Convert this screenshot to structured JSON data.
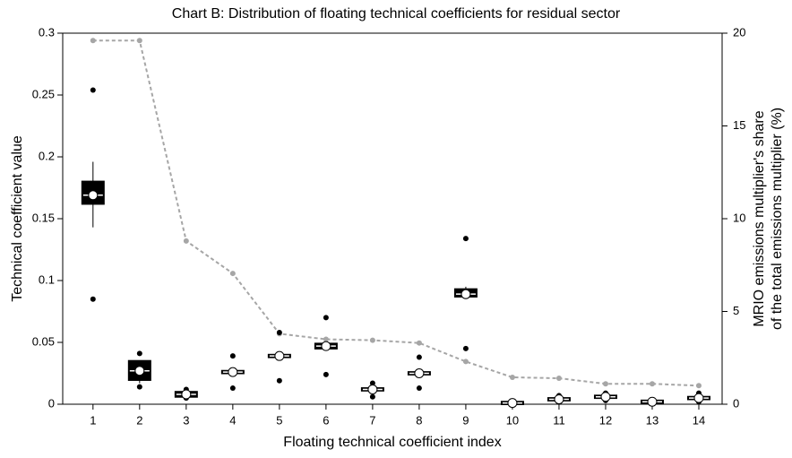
{
  "chart_data": {
    "type": "box",
    "title": "Chart B: Distribution of floating technical coefficients for residual sector",
    "x_label": "Floating technical coefficient index",
    "y_label": "Technical coefficient value",
    "y2_label": [
      "MRIO emissions multiplier's share",
      "of the total emissions multiplier (%)"
    ],
    "x": [
      1,
      2,
      3,
      4,
      5,
      6,
      7,
      8,
      9,
      10,
      11,
      12,
      13,
      14
    ],
    "xlim": [
      0.35,
      14.5
    ],
    "xticks": [
      1,
      2,
      3,
      4,
      5,
      6,
      7,
      8,
      9,
      10,
      11,
      12,
      13,
      14
    ],
    "ylim": [
      0,
      0.3
    ],
    "yticks": [
      0,
      0.05,
      0.1,
      0.15,
      0.2,
      0.25,
      0.3
    ],
    "y2lim": [
      0,
      20
    ],
    "y2ticks": [
      0,
      5,
      10,
      15,
      20
    ],
    "boxes": {
      "color": "#000000",
      "whisker_low": [
        0.143,
        0.017,
        0.006,
        0.025,
        0.038,
        0.045,
        0.011,
        0.024,
        0.085,
        0.0,
        0.003,
        0.005,
        0.001,
        0.004
      ],
      "q1": [
        0.162,
        0.0196,
        0.006,
        0.025,
        0.038,
        0.045,
        0.011,
        0.024,
        0.087,
        0.0,
        0.003,
        0.005,
        0.001,
        0.004
      ],
      "median": [
        0.169,
        0.027,
        0.008,
        0.026,
        0.039,
        0.047,
        0.012,
        0.025,
        0.089,
        0.001,
        0.004,
        0.006,
        0.002,
        0.005
      ],
      "q3": [
        0.18,
        0.035,
        0.01,
        0.027,
        0.04,
        0.049,
        0.013,
        0.026,
        0.093,
        0.002,
        0.005,
        0.007,
        0.003,
        0.006
      ],
      "whisker_high": [
        0.196,
        0.035,
        0.01,
        0.027,
        0.04,
        0.049,
        0.013,
        0.026,
        0.095,
        0.002,
        0.005,
        0.007,
        0.003,
        0.006
      ],
      "mean": [
        0.169,
        0.027,
        0.008,
        0.026,
        0.039,
        0.047,
        0.012,
        0.025,
        0.089,
        0.001,
        0.004,
        0.006,
        0.002,
        0.005
      ],
      "outlier_high": [
        0.254,
        0.041,
        0.012,
        0.039,
        0.058,
        0.07,
        0.017,
        0.038,
        0.134,
        0.002,
        0.007,
        0.009,
        0.003,
        0.009
      ],
      "outlier_low": [
        0.085,
        0.014,
        0.005,
        0.013,
        0.019,
        0.024,
        0.006,
        0.013,
        0.045,
        0.0,
        0.002,
        0.003,
        0.001,
        0.002
      ]
    },
    "line": {
      "axis": "y2",
      "color": "#a6a6a6",
      "values": [
        19.6,
        19.6,
        8.8,
        7.05,
        3.8,
        3.5,
        3.45,
        3.3,
        2.3,
        1.45,
        1.4,
        1.1,
        1.1,
        1.0
      ]
    }
  }
}
